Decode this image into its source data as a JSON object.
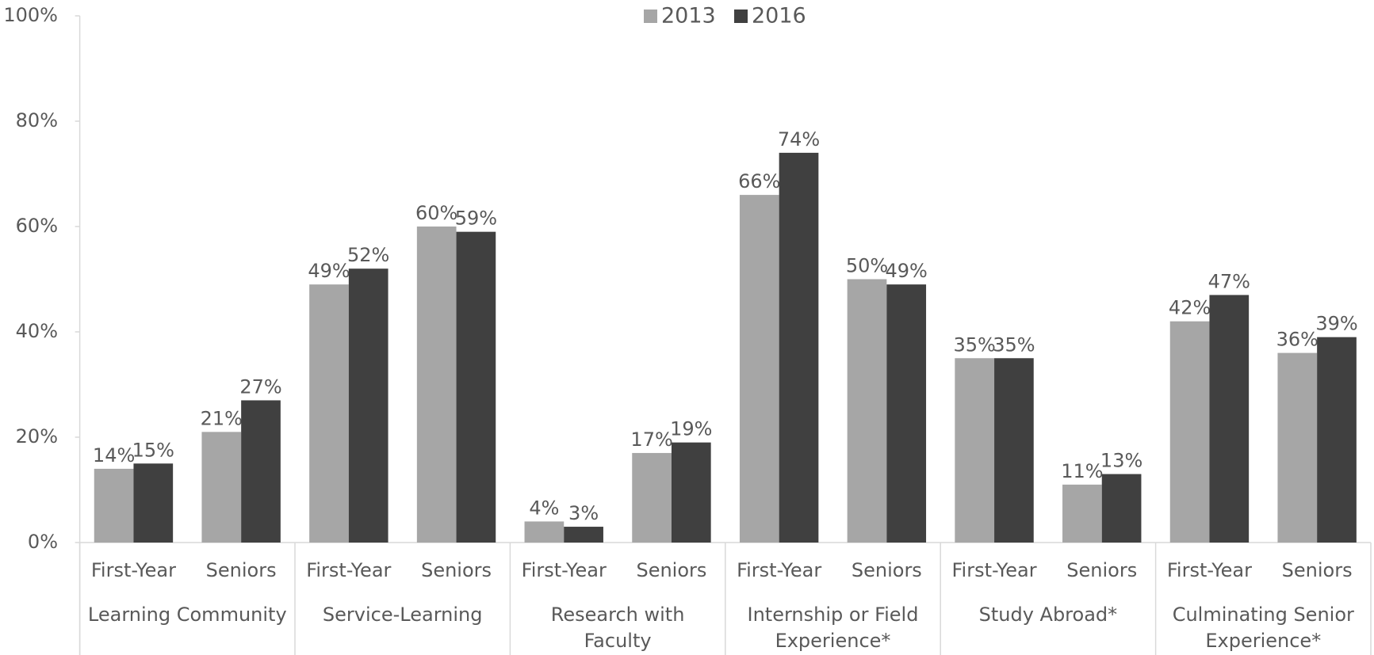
{
  "chart_data": {
    "type": "bar",
    "categories": [
      "First-Year",
      "Seniors",
      "First-Year",
      "Seniors",
      "First-Year",
      "Seniors",
      "First-Year",
      "Seniors",
      "First-Year",
      "Seniors",
      "First-Year",
      "Seniors"
    ],
    "groups": [
      "Learning Community",
      "Service-Learning",
      "Research with Faculty",
      "Internship or Field Experience*",
      "Study Abroad*",
      "Culminating Senior Experience*"
    ],
    "series": [
      {
        "name": "2013",
        "color": "#a6a6a6",
        "values": [
          14,
          21,
          49,
          60,
          4,
          17,
          66,
          50,
          35,
          11,
          42,
          36
        ],
        "value_labels": [
          "14%",
          "21%",
          "49%",
          "60%",
          "4%",
          "17%",
          "66%",
          "50%",
          "35%",
          "11%",
          "42%",
          "36%"
        ]
      },
      {
        "name": "2016",
        "color": "#404040",
        "values": [
          15,
          27,
          52,
          59,
          3,
          19,
          74,
          49,
          35,
          13,
          47,
          39
        ],
        "value_labels": [
          "15%",
          "27%",
          "52%",
          "59%",
          "3%",
          "19%",
          "74%",
          "49%",
          "35%",
          "13%",
          "47%",
          "39%"
        ]
      }
    ],
    "ylim": [
      0,
      100
    ],
    "yticks": [
      {
        "value": 0,
        "label": "0%"
      },
      {
        "value": 20,
        "label": "20%"
      },
      {
        "value": 40,
        "label": "40%"
      },
      {
        "value": 60,
        "label": "60%"
      },
      {
        "value": 80,
        "label": "80%"
      },
      {
        "value": 100,
        "label": "100%"
      }
    ],
    "legend": "top"
  }
}
